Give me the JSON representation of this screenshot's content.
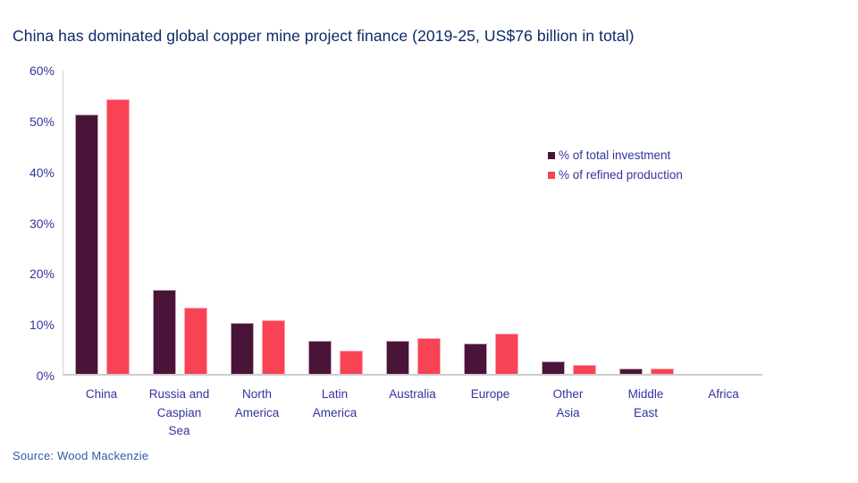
{
  "title": "China has dominated global copper mine project finance (2019-25, US$76 billion in total)",
  "source_note": "Source: Wood Mackenzie",
  "colors": {
    "title_text": "#0b2a66",
    "axis_text": "#3434a0",
    "axis_line": "#d6d3d6",
    "investment_bar": "#4a1439",
    "production_bar": "#f84355",
    "source_text": "#2e5aa8"
  },
  "chart_data": {
    "type": "bar",
    "title": "China has dominated global copper mine project finance (2019-25, US$76 billion in total)",
    "categories": [
      "China",
      "Russia and Caspian Sea",
      "North America",
      "Latin America",
      "Australia",
      "Europe",
      "Other Asia",
      "Middle East",
      "Africa"
    ],
    "category_display": [
      "China",
      "Russia and\nCaspian\nSea",
      "North\nAmerica",
      "Latin\nAmerica",
      "Australia",
      "Europe",
      "Other\nAsia",
      "Middle\nEast",
      "Africa"
    ],
    "series": [
      {
        "name": "% of total investment",
        "color": "#4a1439",
        "values": [
          51,
          16.5,
          10,
          6.5,
          6.5,
          6,
          2.5,
          1,
          0
        ]
      },
      {
        "name": "% of refined production",
        "color": "#f84355",
        "values": [
          54,
          13,
          10.5,
          4.5,
          7,
          8,
          1.7,
          1,
          0
        ]
      }
    ],
    "xlabel": "",
    "ylabel": "",
    "ylim": [
      0,
      60
    ],
    "yticks": [
      "0%",
      "10%",
      "20%",
      "30%",
      "40%",
      "50%",
      "60%"
    ],
    "grid": false,
    "legend_position": "inside-right"
  }
}
